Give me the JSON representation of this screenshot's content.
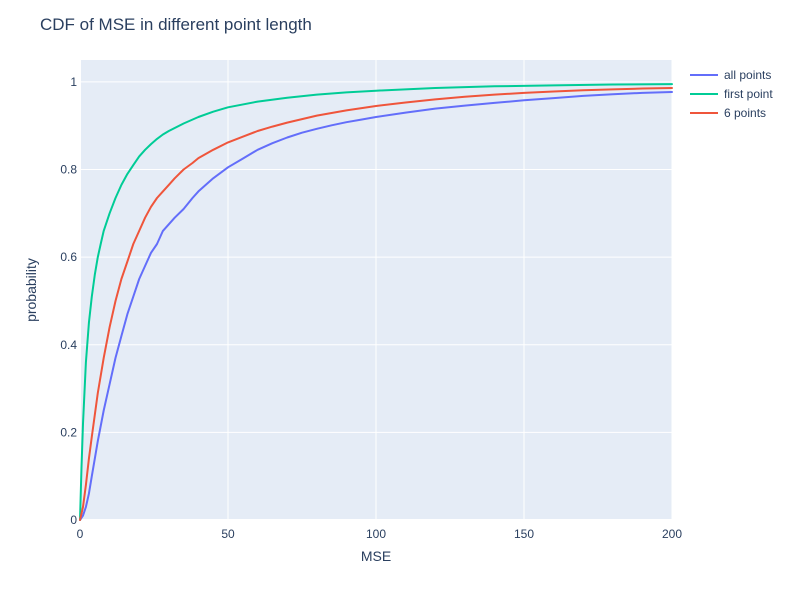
{
  "chart_data": {
    "type": "line",
    "title": "CDF of MSE in different point length",
    "xlabel": "MSE",
    "ylabel": "probability",
    "xlim": [
      0,
      200
    ],
    "ylim": [
      0,
      1.05
    ],
    "xticks": [
      0,
      50,
      100,
      150,
      200
    ],
    "xtick_labels": [
      "0",
      "50",
      "100",
      "150",
      "200"
    ],
    "yticks": [
      0,
      0.2,
      0.4,
      0.6,
      0.8,
      1
    ],
    "ytick_labels": [
      "0",
      "0.2",
      "0.4",
      "0.6",
      "0.8",
      "1"
    ],
    "grid": true,
    "legend_position": "right",
    "series": [
      {
        "name": "all points",
        "color": "#636efa",
        "x": [
          0,
          1,
          2,
          3,
          4,
          5,
          6,
          8,
          10,
          12,
          14,
          16,
          18,
          20,
          22,
          24,
          26,
          28,
          30,
          32,
          35,
          38,
          40,
          45,
          50,
          55,
          60,
          65,
          70,
          75,
          80,
          85,
          90,
          95,
          100,
          110,
          120,
          130,
          140,
          150,
          160,
          170,
          180,
          190,
          200
        ],
        "y": [
          0,
          0.01,
          0.03,
          0.06,
          0.1,
          0.14,
          0.18,
          0.25,
          0.31,
          0.37,
          0.42,
          0.47,
          0.51,
          0.55,
          0.58,
          0.61,
          0.63,
          0.66,
          0.675,
          0.69,
          0.71,
          0.735,
          0.75,
          0.78,
          0.805,
          0.825,
          0.845,
          0.86,
          0.873,
          0.884,
          0.893,
          0.901,
          0.908,
          0.914,
          0.92,
          0.93,
          0.939,
          0.946,
          0.952,
          0.958,
          0.963,
          0.968,
          0.972,
          0.975,
          0.977
        ]
      },
      {
        "name": "first point",
        "color": "#00cc96",
        "x": [
          0,
          0.5,
          1,
          2,
          3,
          4,
          5,
          6,
          7,
          8,
          10,
          12,
          14,
          16,
          18,
          20,
          22,
          24,
          26,
          28,
          30,
          35,
          40,
          45,
          50,
          60,
          70,
          80,
          90,
          100,
          120,
          140,
          160,
          180,
          200
        ],
        "y": [
          0,
          0.12,
          0.22,
          0.36,
          0.45,
          0.51,
          0.56,
          0.6,
          0.63,
          0.66,
          0.7,
          0.735,
          0.765,
          0.79,
          0.81,
          0.83,
          0.845,
          0.858,
          0.87,
          0.88,
          0.888,
          0.905,
          0.92,
          0.932,
          0.942,
          0.955,
          0.964,
          0.971,
          0.976,
          0.98,
          0.986,
          0.99,
          0.992,
          0.994,
          0.995
        ]
      },
      {
        "name": "6 points",
        "color": "#ef553b",
        "x": [
          0,
          1,
          2,
          3,
          4,
          5,
          6,
          8,
          10,
          12,
          14,
          16,
          18,
          20,
          22,
          24,
          26,
          28,
          30,
          32,
          35,
          38,
          40,
          45,
          50,
          55,
          60,
          65,
          70,
          80,
          90,
          100,
          110,
          120,
          130,
          140,
          150,
          160,
          170,
          180,
          190,
          200
        ],
        "y": [
          0,
          0.03,
          0.08,
          0.14,
          0.19,
          0.24,
          0.29,
          0.37,
          0.44,
          0.5,
          0.55,
          0.59,
          0.63,
          0.66,
          0.69,
          0.715,
          0.735,
          0.75,
          0.765,
          0.78,
          0.8,
          0.815,
          0.826,
          0.845,
          0.862,
          0.875,
          0.888,
          0.898,
          0.907,
          0.923,
          0.935,
          0.945,
          0.953,
          0.96,
          0.966,
          0.971,
          0.975,
          0.978,
          0.981,
          0.983,
          0.985,
          0.986
        ]
      }
    ]
  }
}
